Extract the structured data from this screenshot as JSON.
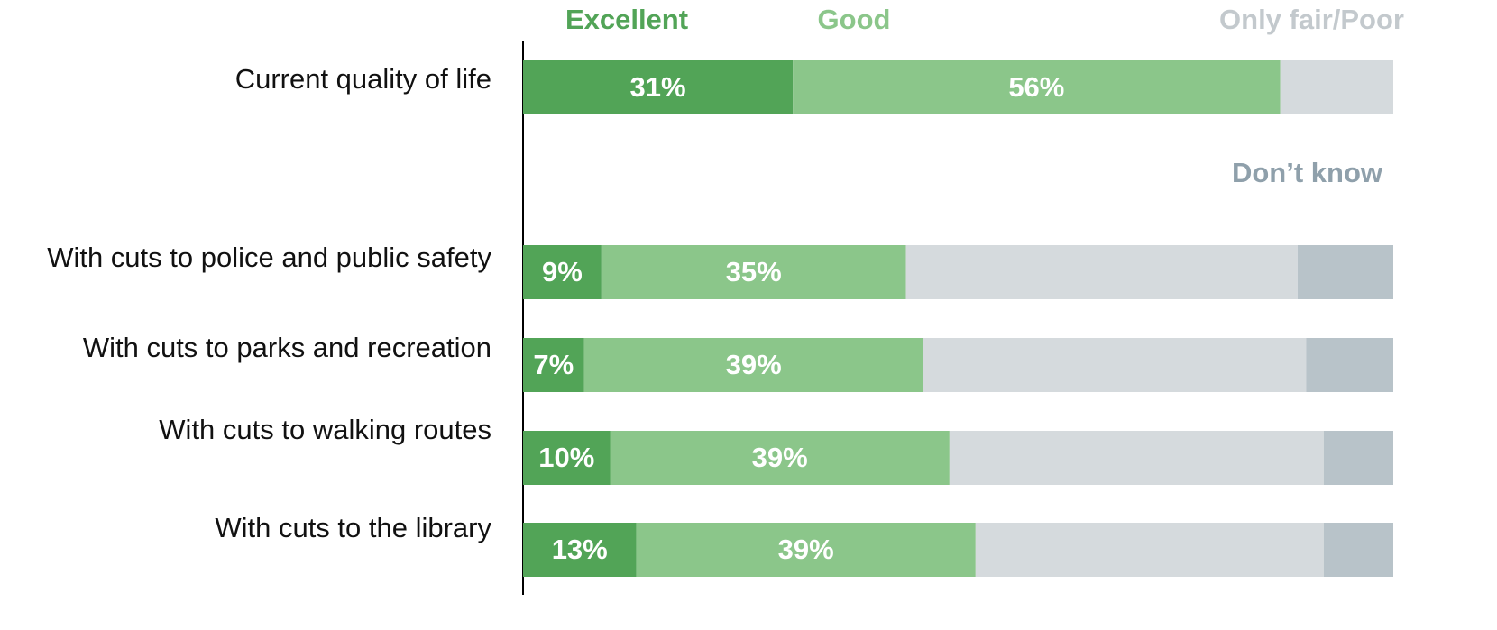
{
  "chart_data": {
    "type": "stacked-bar-horizontal",
    "categories": [
      "Current quality of life",
      "With cuts to police and public safety",
      "With cuts to parks and recreation",
      "With cuts to walking routes",
      "With cuts to the library"
    ],
    "xlim": [
      0,
      100
    ],
    "series": [
      {
        "name": "Excellent",
        "color": "#52a457",
        "values": [
          31,
          9,
          7,
          10,
          13
        ],
        "value_labels": [
          "31%",
          "9%",
          "7%",
          "10%",
          "13%"
        ]
      },
      {
        "name": "Good",
        "color": "#8bc68a",
        "values": [
          56,
          35,
          39,
          39,
          39
        ],
        "value_labels": [
          "56%",
          "35%",
          "39%",
          "39%",
          "39%"
        ]
      },
      {
        "name": "Only fair/Poor",
        "color": "#d5dadd",
        "values": [
          13,
          45,
          44,
          43,
          40
        ]
      },
      {
        "name": "Don’t know",
        "color": "#b8c3c9",
        "values": [
          0,
          11,
          10,
          8,
          8
        ]
      }
    ]
  }
}
